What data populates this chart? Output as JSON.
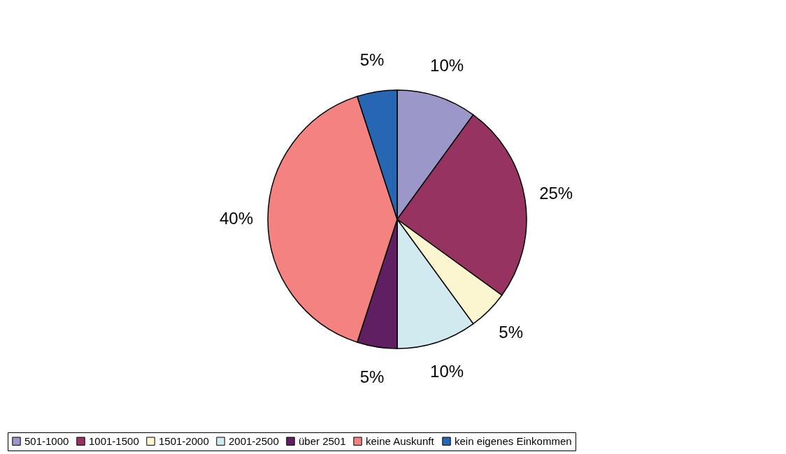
{
  "chart_data": {
    "type": "pie",
    "categories": [
      "501-1000",
      "1001-1500",
      "1501-2000",
      "2001-2500",
      "über 2501",
      "keine Auskunft",
      "kein eigenes Einkommen"
    ],
    "values": [
      10,
      25,
      5,
      10,
      5,
      40,
      5
    ],
    "colors": [
      "#9b97c9",
      "#963361",
      "#fbf6d0",
      "#d0eaf0",
      "#601f61",
      "#f38281",
      "#2766b3"
    ],
    "value_labels": [
      "10%",
      "25%",
      "5%",
      "10%",
      "5%",
      "40%",
      "5%"
    ],
    "legend": "bottom"
  }
}
